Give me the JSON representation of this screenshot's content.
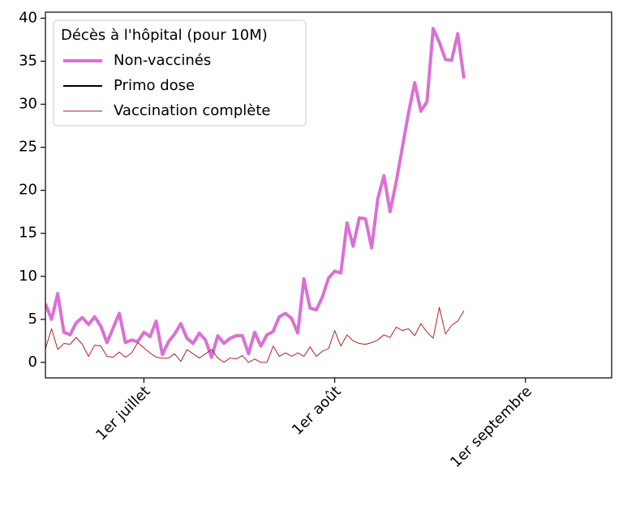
{
  "chart_data": {
    "type": "line",
    "legend_title": "Décès à l'hôpital (pour 10M)",
    "legend": "upper left",
    "x": [
      "06-15",
      "06-16",
      "06-17",
      "06-18",
      "06-19",
      "06-20",
      "06-21",
      "06-22",
      "06-23",
      "06-24",
      "06-25",
      "06-26",
      "06-27",
      "06-28",
      "06-29",
      "06-30",
      "07-01",
      "07-02",
      "07-03",
      "07-04",
      "07-05",
      "07-06",
      "07-07",
      "07-08",
      "07-09",
      "07-10",
      "07-11",
      "07-12",
      "07-13",
      "07-14",
      "07-15",
      "07-16",
      "07-17",
      "07-18",
      "07-19",
      "07-20",
      "07-21",
      "07-22",
      "07-23",
      "07-24",
      "07-25",
      "07-26",
      "07-27",
      "07-28",
      "07-29",
      "07-30",
      "07-31",
      "08-01",
      "08-02",
      "08-03",
      "08-04",
      "08-05",
      "08-06",
      "08-07",
      "08-08",
      "08-09",
      "08-10",
      "08-11",
      "08-12",
      "08-13",
      "08-14",
      "08-15",
      "08-16",
      "08-17",
      "08-18",
      "08-19",
      "08-20",
      "08-21",
      "08-22"
    ],
    "series": [
      {
        "name": "Non-vaccinés",
        "color": "#da70d6",
        "linewidth": 4,
        "values": [
          6.8,
          5.0,
          8.0,
          3.5,
          3.2,
          4.6,
          5.2,
          4.4,
          5.3,
          4.2,
          2.3,
          4.0,
          5.7,
          2.3,
          2.6,
          2.4,
          3.5,
          3.0,
          4.8,
          0.9,
          2.4,
          3.3,
          4.5,
          2.8,
          2.2,
          3.4,
          2.6,
          0.6,
          3.1,
          2.2,
          2.8,
          3.1,
          3.1,
          1.0,
          3.5,
          1.9,
          3.2,
          3.6,
          5.3,
          5.7,
          5.1,
          3.4,
          9.7,
          6.3,
          6.1,
          7.6,
          9.8,
          10.6,
          10.4,
          16.2,
          13.5,
          16.8,
          16.7,
          13.3,
          19.0,
          21.7,
          17.5,
          21.0,
          25.0,
          29.0,
          32.5,
          29.2,
          30.3,
          38.8,
          37.2,
          35.2,
          35.1,
          38.2,
          33.0
        ]
      },
      {
        "name": "Primo dose",
        "color": "#000000",
        "linewidth": 2,
        "values": [
          null,
          null,
          null,
          null,
          null,
          null,
          null,
          null,
          null,
          null,
          null,
          null,
          null,
          null,
          null,
          null,
          null,
          null,
          null,
          null,
          null,
          null,
          null,
          null,
          null,
          null,
          null,
          null,
          null,
          null,
          null,
          null,
          null,
          null,
          null,
          null,
          null,
          null,
          null,
          null,
          null,
          null,
          null,
          null,
          null,
          null,
          null,
          null,
          null,
          null,
          null,
          null,
          null,
          null,
          null,
          null,
          null,
          null,
          null,
          null,
          null,
          null,
          null,
          null,
          null,
          null,
          null,
          null,
          null
        ]
      },
      {
        "name": "Vaccination complète",
        "color": "#b22222",
        "linewidth": 1,
        "values": [
          1.6,
          3.9,
          1.5,
          2.2,
          2.1,
          2.9,
          2.1,
          0.7,
          2.0,
          1.9,
          0.7,
          0.6,
          1.2,
          0.6,
          1.1,
          2.3,
          1.7,
          1.1,
          0.6,
          0.5,
          0.5,
          1.0,
          0.1,
          1.5,
          1.0,
          0.5,
          1.0,
          1.5,
          0.5,
          0.0,
          0.5,
          0.4,
          0.8,
          0.0,
          0.4,
          0.0,
          0.0,
          1.9,
          0.7,
          1.1,
          0.7,
          1.1,
          0.7,
          1.8,
          0.7,
          1.3,
          1.6,
          3.7,
          1.9,
          3.2,
          2.5,
          2.2,
          2.1,
          2.3,
          2.6,
          3.2,
          2.9,
          4.1,
          3.7,
          3.9,
          3.1,
          4.5,
          3.5,
          2.8,
          6.4,
          3.3,
          4.3,
          4.8,
          6.0
        ]
      }
    ],
    "xlim": [
      "06-15",
      "09-15"
    ],
    "xticks": [
      {
        "value": "07-01",
        "label": "1er juillet"
      },
      {
        "value": "08-01",
        "label": "1er août"
      },
      {
        "value": "09-01",
        "label": "1er septembre"
      }
    ],
    "ylim": [
      -1.8,
      40.7
    ],
    "yticks": [
      0,
      5,
      10,
      15,
      20,
      25,
      30,
      35,
      40
    ]
  }
}
